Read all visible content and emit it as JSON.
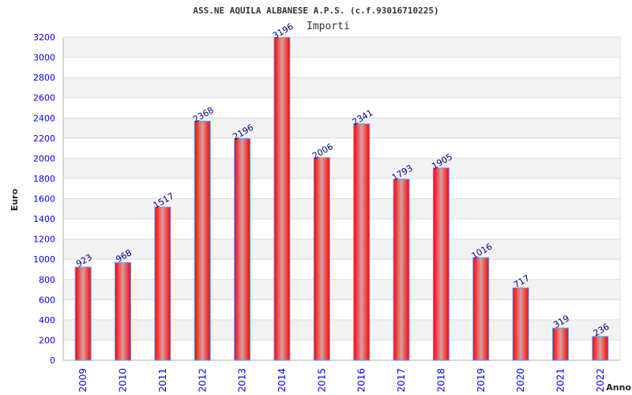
{
  "chart_data": {
    "type": "bar",
    "title": "ASS.NE AQUILA ALBANESE A.P.S. (c.f.93016710225)",
    "legend": "Importi",
    "legend_position": "top-center",
    "xlabel": "Anno",
    "ylabel": "Euro",
    "ylim": [
      0,
      3200
    ],
    "yticks": [
      0,
      200,
      400,
      600,
      800,
      1000,
      1200,
      1400,
      1600,
      1800,
      2000,
      2200,
      2400,
      2600,
      2800,
      3000,
      3200
    ],
    "grid": true,
    "categories": [
      "2009",
      "2010",
      "2011",
      "2012",
      "2013",
      "2014",
      "2015",
      "2016",
      "2017",
      "2018",
      "2019",
      "2020",
      "2021",
      "2022"
    ],
    "values": [
      923,
      968,
      1517,
      2368,
      2196,
      3196,
      2006,
      2341,
      1793,
      1905,
      1016,
      717,
      319,
      236
    ],
    "colors": {
      "bar": "#ff0000",
      "bar_highlight": "#d8a0a0",
      "bar_border": "#5aa0ff",
      "tick_label": "#0000ff",
      "value_label": "#000080",
      "band": "#f2f2f2",
      "grid": "#dddddd"
    }
  }
}
